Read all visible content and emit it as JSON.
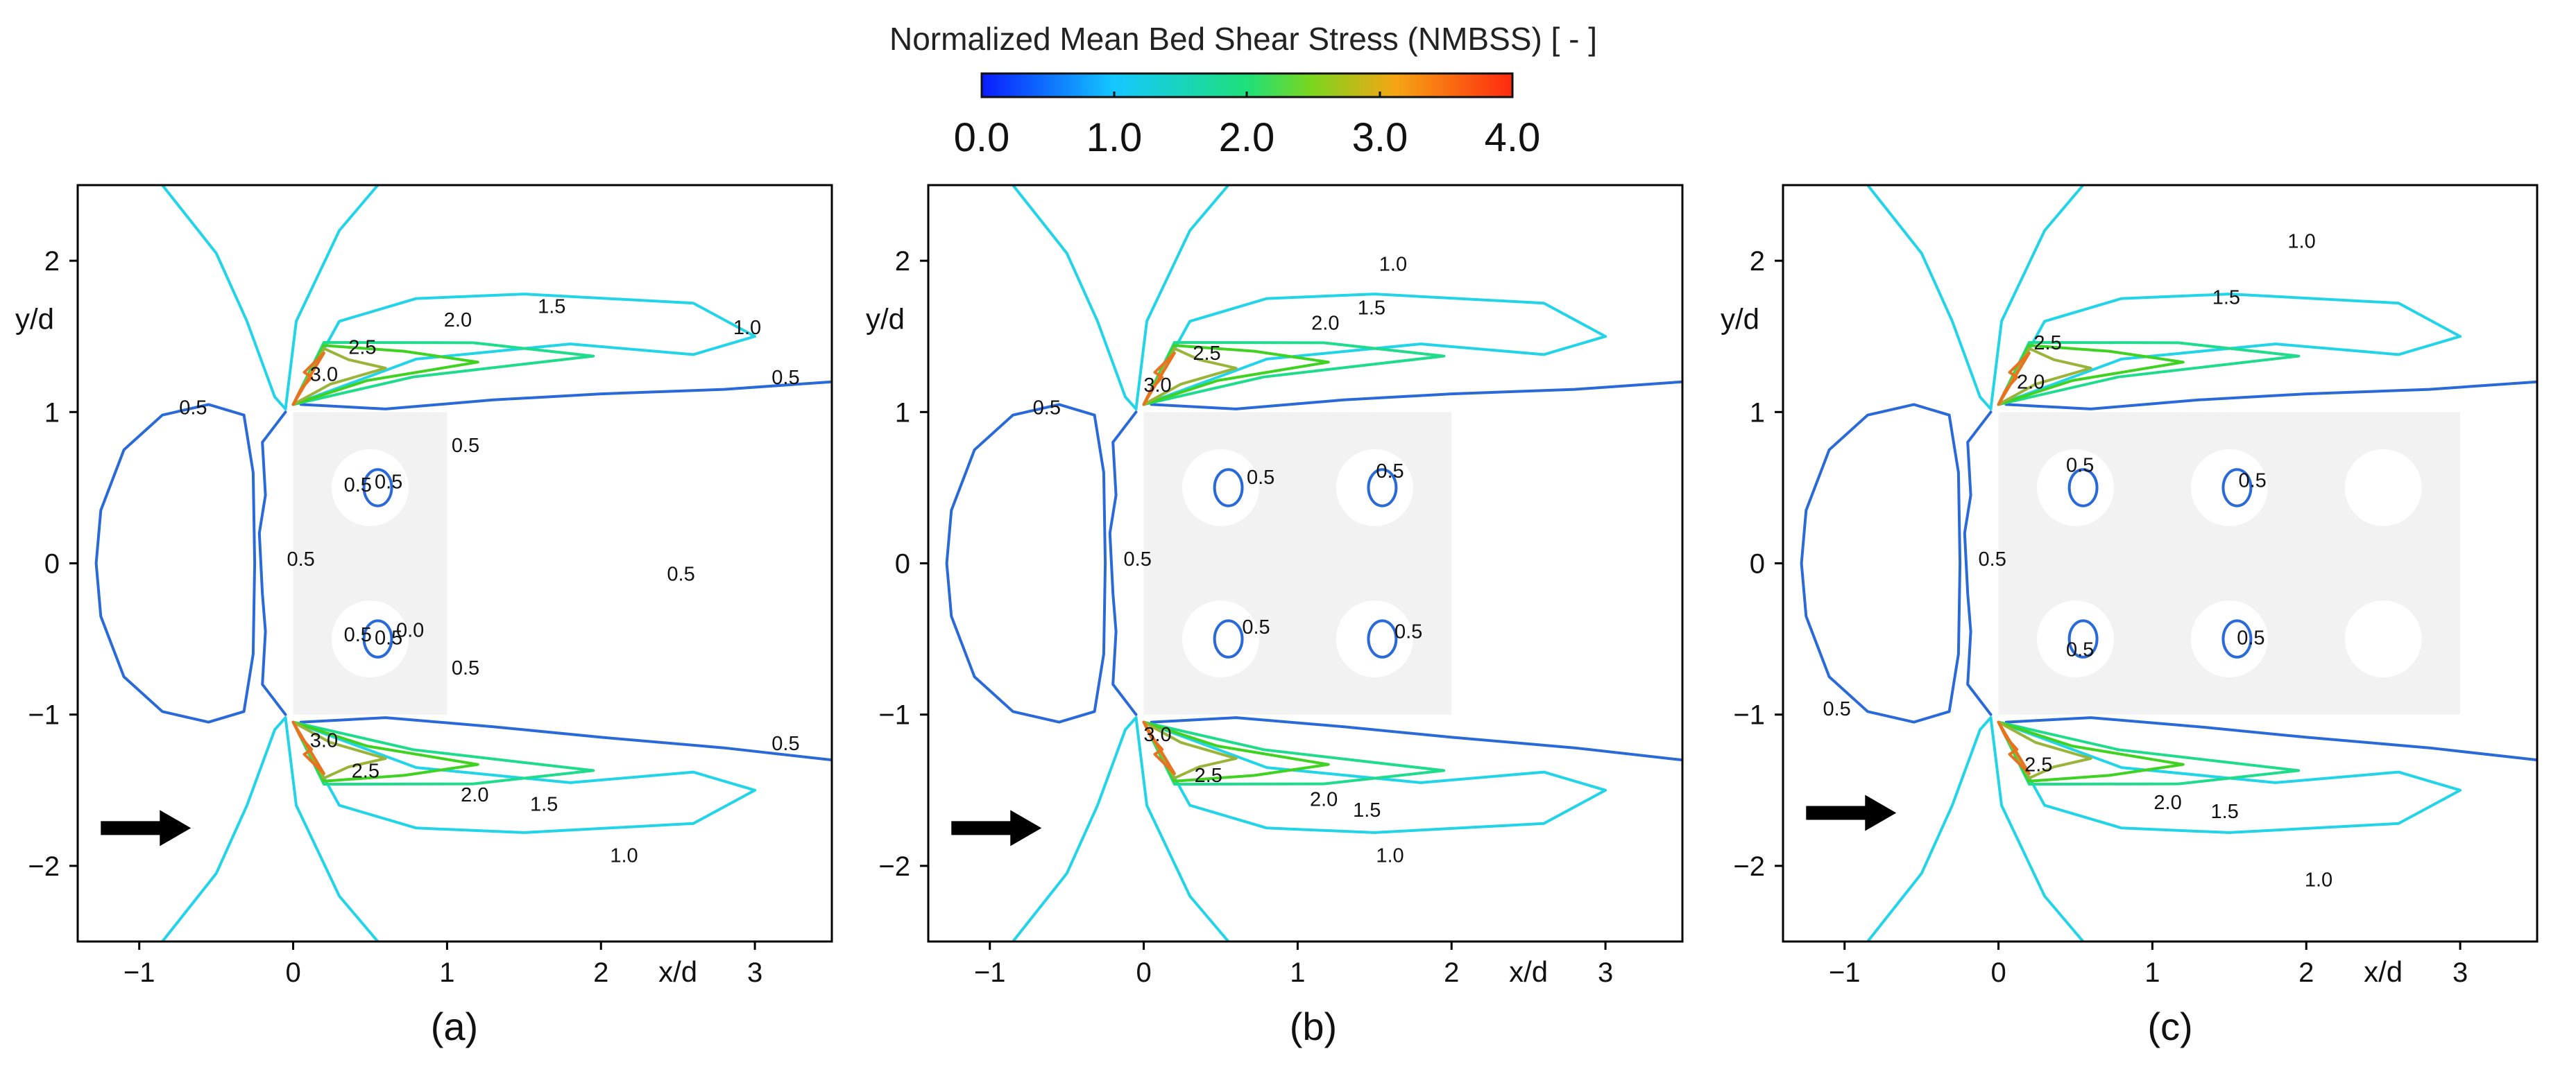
{
  "colorbar": {
    "title": "Normalized Mean Bed Shear Stress (NMBSS) [ - ]",
    "min": 0.0,
    "max": 4.0,
    "ticks": [
      "0.0",
      "1.0",
      "2.0",
      "3.0",
      "4.0"
    ],
    "colors": [
      "#0a1cff",
      "#14c8ff",
      "#1ee07a",
      "#7ad61e",
      "#f5a514",
      "#ff2a10"
    ]
  },
  "contour_colors": {
    "0.5": "#2a6ad8",
    "1.0": "#22d4e8",
    "1.5": "#1fdc8c",
    "2.0": "#3fd220",
    "2.5": "#9ab43a",
    "3.0": "#e8731e"
  },
  "chart_data": [
    {
      "type": "contour",
      "panel": "(a)",
      "xlabel": "x/d",
      "ylabel": "y/d",
      "xlim": [
        -1.4,
        3.5
      ],
      "ylim": [
        -2.5,
        2.5
      ],
      "xticks": [
        "−1",
        "0",
        "1",
        "2",
        "3"
      ],
      "yticks": [
        "−2",
        "−1",
        "0",
        "1",
        "2"
      ],
      "patch": {
        "x0": 0.0,
        "x1": 1.0,
        "y0": -1.0,
        "y1": 1.0
      },
      "cylinders": [
        {
          "x": 0.5,
          "y": 0.5
        },
        {
          "x": 0.5,
          "y": -0.5
        }
      ],
      "flow_arrow": {
        "x": -1.25,
        "y": -1.75
      },
      "contour_labels": [
        {
          "text": "0.5",
          "x": -0.65,
          "y": 1.02
        },
        {
          "text": "0.5",
          "x": 0.05,
          "y": 0.02
        },
        {
          "text": "0.5",
          "x": 0.42,
          "y": 0.51
        },
        {
          "text": "0.5",
          "x": 0.62,
          "y": 0.53
        },
        {
          "text": "0.5",
          "x": 0.42,
          "y": -0.48
        },
        {
          "text": "0.5",
          "x": 0.62,
          "y": -0.5
        },
        {
          "text": "0.0",
          "x": 0.76,
          "y": -0.45
        },
        {
          "text": "0.5",
          "x": 1.12,
          "y": 0.77
        },
        {
          "text": "0.5",
          "x": 1.12,
          "y": -0.7
        },
        {
          "text": "0.5",
          "x": 2.52,
          "y": -0.08
        },
        {
          "text": "0.5",
          "x": 3.2,
          "y": 1.22
        },
        {
          "text": "0.5",
          "x": 3.2,
          "y": -1.2
        },
        {
          "text": "3.0",
          "x": 0.2,
          "y": 1.24
        },
        {
          "text": "2.5",
          "x": 0.45,
          "y": 1.42
        },
        {
          "text": "2.0",
          "x": 1.07,
          "y": 1.6
        },
        {
          "text": "1.5",
          "x": 1.68,
          "y": 1.69
        },
        {
          "text": "1.0",
          "x": 2.95,
          "y": 1.55
        },
        {
          "text": "3.0",
          "x": 0.2,
          "y": -1.18
        },
        {
          "text": "2.5",
          "x": 0.47,
          "y": -1.38
        },
        {
          "text": "2.0",
          "x": 1.18,
          "y": -1.54
        },
        {
          "text": "1.5",
          "x": 1.63,
          "y": -1.6
        },
        {
          "text": "1.0",
          "x": 2.15,
          "y": -1.94
        }
      ]
    },
    {
      "type": "contour",
      "panel": "(b)",
      "xlabel": "x/d",
      "ylabel": "y/d",
      "xlim": [
        -1.4,
        3.5
      ],
      "ylim": [
        -2.5,
        2.5
      ],
      "xticks": [
        "−1",
        "0",
        "1",
        "2",
        "3"
      ],
      "yticks": [
        "−2",
        "−1",
        "0",
        "1",
        "2"
      ],
      "patch": {
        "x0": 0.0,
        "x1": 2.0,
        "y0": -1.0,
        "y1": 1.0
      },
      "cylinders": [
        {
          "x": 0.5,
          "y": 0.5
        },
        {
          "x": 1.5,
          "y": 0.5
        },
        {
          "x": 0.5,
          "y": -0.5
        },
        {
          "x": 1.5,
          "y": -0.5
        }
      ],
      "flow_arrow": {
        "x": -1.25,
        "y": -1.75
      },
      "contour_labels": [
        {
          "text": "0.5",
          "x": -0.63,
          "y": 1.02
        },
        {
          "text": "0.5",
          "x": -0.04,
          "y": 0.02
        },
        {
          "text": "0.5",
          "x": 0.76,
          "y": 0.56
        },
        {
          "text": "0.5",
          "x": 1.6,
          "y": 0.6
        },
        {
          "text": "0.5",
          "x": 0.73,
          "y": -0.43
        },
        {
          "text": "0.5",
          "x": 1.72,
          "y": -0.46
        },
        {
          "text": "3.0",
          "x": 0.09,
          "y": 1.17
        },
        {
          "text": "2.5",
          "x": 0.41,
          "y": 1.38
        },
        {
          "text": "2.0",
          "x": 1.18,
          "y": 1.58
        },
        {
          "text": "1.5",
          "x": 1.48,
          "y": 1.68
        },
        {
          "text": "1.0",
          "x": 1.62,
          "y": 1.97
        },
        {
          "text": "3.0",
          "x": 0.09,
          "y": -1.14
        },
        {
          "text": "2.5",
          "x": 0.42,
          "y": -1.41
        },
        {
          "text": "2.0",
          "x": 1.17,
          "y": -1.57
        },
        {
          "text": "1.5",
          "x": 1.45,
          "y": -1.64
        },
        {
          "text": "1.0",
          "x": 1.6,
          "y": -1.94
        }
      ]
    },
    {
      "type": "contour",
      "panel": "(c)",
      "xlabel": "x/d",
      "ylabel": "y/d",
      "xlim": [
        -1.4,
        3.5
      ],
      "ylim": [
        -2.5,
        2.5
      ],
      "xticks": [
        "−1",
        "0",
        "1",
        "2",
        "3"
      ],
      "yticks": [
        "−2",
        "−1",
        "0",
        "1",
        "2"
      ],
      "patch": {
        "x0": 0.0,
        "x1": 3.0,
        "y0": -1.0,
        "y1": 1.0
      },
      "cylinders": [
        {
          "x": 0.5,
          "y": 0.5
        },
        {
          "x": 1.5,
          "y": 0.5
        },
        {
          "x": 2.5,
          "y": 0.5
        },
        {
          "x": 0.5,
          "y": -0.5
        },
        {
          "x": 1.5,
          "y": -0.5
        },
        {
          "x": 2.5,
          "y": -0.5
        }
      ],
      "flow_arrow": {
        "x": -1.25,
        "y": -1.65
      },
      "contour_labels": [
        {
          "text": "0.5",
          "x": -1.05,
          "y": -0.97
        },
        {
          "text": "0.5",
          "x": -0.04,
          "y": 0.02
        },
        {
          "text": "0.5",
          "x": 0.53,
          "y": 0.64
        },
        {
          "text": "0.5",
          "x": 1.65,
          "y": 0.54
        },
        {
          "text": "0.5",
          "x": 0.53,
          "y": -0.58
        },
        {
          "text": "0.5",
          "x": 1.64,
          "y": -0.5
        },
        {
          "text": "2.5",
          "x": 0.32,
          "y": 1.45
        },
        {
          "text": "2.0",
          "x": 0.21,
          "y": 1.19
        },
        {
          "text": "1.5",
          "x": 1.48,
          "y": 1.75
        },
        {
          "text": "1.0",
          "x": 1.97,
          "y": 2.12
        },
        {
          "text": "2.5",
          "x": 0.26,
          "y": -1.34
        },
        {
          "text": "2.0",
          "x": 1.1,
          "y": -1.59
        },
        {
          "text": "1.5",
          "x": 1.47,
          "y": -1.65
        },
        {
          "text": "1.0",
          "x": 2.08,
          "y": -2.1
        }
      ]
    }
  ]
}
